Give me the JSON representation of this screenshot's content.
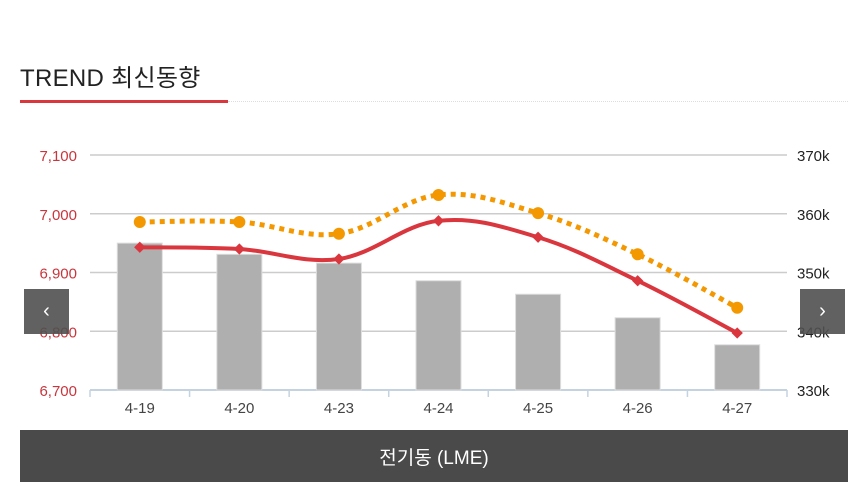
{
  "header": {
    "title": "TREND 최신동향"
  },
  "footer": {
    "label": "전기동 (LME)"
  },
  "nav": {
    "prev_icon": "‹",
    "next_icon": "›"
  },
  "colors": {
    "red": "#d9363e",
    "orange": "#f39800",
    "bar": "#afafaf"
  },
  "chart_data": {
    "type": "bar+line",
    "categories": [
      "4-19",
      "4-20",
      "4-23",
      "4-24",
      "4-25",
      "4-26",
      "4-27"
    ],
    "left_axis": {
      "ylim": [
        6700,
        7100
      ],
      "ticks": [
        "7,100",
        "7,000",
        "6,900",
        "6,800",
        "6,700"
      ],
      "tick_values": [
        7100,
        7000,
        6900,
        6800,
        6700
      ]
    },
    "right_axis": {
      "ylim": [
        330,
        370
      ],
      "ticks": [
        "370k",
        "360k",
        "350k",
        "340k",
        "330k"
      ],
      "tick_values": [
        370,
        360,
        350,
        340,
        330
      ]
    },
    "series": [
      {
        "name": "bars",
        "type": "bar",
        "axis": "right",
        "values": [
          355.0,
          353.1,
          351.6,
          348.6,
          346.3,
          342.3,
          337.7
        ]
      },
      {
        "name": "red-line",
        "type": "line",
        "axis": "left",
        "values": [
          6943,
          6940,
          6923,
          6988,
          6960,
          6886,
          6797
        ]
      },
      {
        "name": "orange-dotted-line",
        "type": "line",
        "axis": "left",
        "values": [
          6986,
          6986,
          6966,
          7032,
          7001,
          6931,
          6840
        ]
      }
    ],
    "grid": true
  }
}
